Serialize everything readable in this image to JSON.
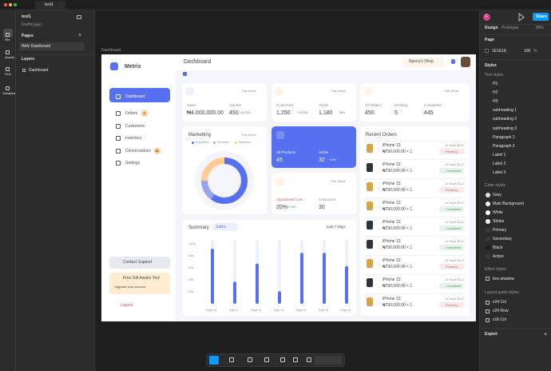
{
  "app": {
    "tab": "test1",
    "file_name": "test1",
    "location": "Drafts",
    "plan": "Free",
    "rail": [
      "File",
      "Assets",
      "Find",
      "Variables"
    ],
    "pages_heading": "Pages",
    "pages": [
      "Web Dashboard"
    ],
    "layers_heading": "Layers",
    "layers": [
      "Dashboard"
    ],
    "avatar_initial": "F",
    "share": "Share",
    "tabs": [
      "Design",
      "Prototype"
    ],
    "zoom": "89%",
    "page_heading": "Page",
    "page_color": "1E1E1E",
    "page_opacity": "100",
    "percent": "%",
    "styles_heading": "Styles",
    "text_styles_heading": "Text styles",
    "text_styles": [
      "H1",
      "H2",
      "H3",
      "subheading 1",
      "subheading 2",
      "subheading 3",
      "Paragraph 1",
      "Paragraph 2",
      "Label 1",
      "Label 2",
      "Label 3"
    ],
    "color_styles_heading": "Color styles",
    "color_styles": [
      {
        "name": "Grey",
        "color": "#e1e2e9"
      },
      {
        "name": "Main Background",
        "color": "#f4f5fa"
      },
      {
        "name": "White",
        "color": "#ffffff"
      },
      {
        "name": "Stroke",
        "color": "#f1f3f9"
      },
      {
        "name": "Primary",
        "color": "#3a3a3a"
      },
      {
        "name": "Secondary",
        "color": "#3a3a3a"
      },
      {
        "name": "Black",
        "color": "#1c1d22"
      },
      {
        "name": "Action",
        "color": "#3a3a3a"
      }
    ],
    "effect_styles_heading": "Effect styles",
    "effect_styles": [
      "box-shadow"
    ],
    "layout_guide_heading": "Layout guide styles",
    "layout_guides": [
      "x24 Col",
      "x24 Row",
      "x16 Col"
    ],
    "export": "Export",
    "frame_label": "Dashboard"
  },
  "dashboard": {
    "brand": "Metrix",
    "nav": [
      {
        "label": "Dashboard"
      },
      {
        "label": "Orders",
        "badge": 3
      },
      {
        "label": "Customers"
      },
      {
        "label": "Inventory"
      },
      {
        "label": "Conversations",
        "badge": 16
      },
      {
        "label": "Settings"
      }
    ],
    "support": "Contact Support",
    "gift_title": "Free Gift Awaits You!",
    "gift_link": "Upgrade your account",
    "logout": "Logout",
    "header": "Dashboard",
    "shop": "Nanny's Shop",
    "stats": [
      {
        "period": "This Week",
        "items": [
          {
            "label": "Sales",
            "value": "₦4,000,000.00"
          },
          {
            "label": "Volume",
            "value": "450",
            "change": "+20.00%"
          }
        ]
      },
      {
        "period": "This Week",
        "items": [
          {
            "label": "Customers",
            "value": "1,250",
            "change": "+15.80%"
          },
          {
            "label": "Active",
            "value": "1,180",
            "change": "85%"
          }
        ]
      },
      {
        "period": "This Week",
        "items": [
          {
            "label": "All Orders",
            "value": "450"
          },
          {
            "label": "Pending",
            "value": "5"
          },
          {
            "label": "Completed",
            "value": "445"
          }
        ]
      }
    ],
    "marketing": {
      "title": "Marketting",
      "period": "This Week",
      "names": [
        "Acquisition",
        "Purchase",
        "Retention"
      ],
      "colors": [
        "#5570f1",
        "#97a5eb",
        "#ffcc91"
      ],
      "values": [
        60,
        15,
        25
      ]
    },
    "products": {
      "items": [
        {
          "label": "All Products",
          "value": "45"
        },
        {
          "label": "Active",
          "value": "32",
          "change": "+24%"
        }
      ]
    },
    "abandoned": {
      "period": "This Week",
      "items": [
        {
          "label": "Abandoned Cart",
          "value": "20%",
          "change": "+0.00%"
        },
        {
          "label": "Customers",
          "value": "30"
        }
      ]
    },
    "summary": {
      "type": "bar",
      "title": "Summary",
      "filter": "Sales",
      "range": "Last 7 Days",
      "color": "#5570f1",
      "categories": [
        "Sept 10",
        "Sept 11",
        "Sept 12",
        "Sept 13",
        "Sept 14",
        "Sept 15",
        "Sept 16"
      ],
      "values": [
        92000,
        37000,
        67000,
        21000,
        85000,
        85000,
        63000
      ],
      "ylim": [
        0,
        100000
      ],
      "yticks": [
        {
          "value": 20000,
          "label": "20k"
        },
        {
          "value": 40000,
          "label": "40k"
        },
        {
          "value": 60000,
          "label": "60k"
        },
        {
          "value": 80000,
          "label": "80k"
        },
        {
          "value": 100000,
          "label": "100k"
        }
      ]
    },
    "orders_title": "Recent Orders",
    "orders": [
      {
        "product": "iPhone 13",
        "price": "₦730,000.00 × 1",
        "date": "12 Sept 2022",
        "status": "Pending",
        "status_color": "#cc5f5f"
      },
      {
        "product": "iPhone 13",
        "price": "₦730,000.00 × 1",
        "date": "12 Sept 2022",
        "status": "Completed",
        "status_color": "#519c66"
      },
      {
        "product": "iPhone 13",
        "price": "₦730,000.00 × 1",
        "date": "12 Sept 2022",
        "status": "Pending",
        "status_color": "#cc5f5f"
      },
      {
        "product": "iPhone 13",
        "price": "₦730,000.00 × 1",
        "date": "12 Sept 2022",
        "status": "Completed",
        "status_color": "#519c66"
      },
      {
        "product": "iPhone 13",
        "price": "₦730,000.00 × 1",
        "date": "12 Sept 2022",
        "status": "Completed",
        "status_color": "#519c66"
      },
      {
        "product": "iPhone 13",
        "price": "₦730,000.00 × 1",
        "date": "12 Sept 2022",
        "status": "Completed",
        "status_color": "#519c66"
      },
      {
        "product": "iPhone 13",
        "price": "₦730,000.00 × 1",
        "date": "12 Sept 2022",
        "status": "Pending",
        "status_color": "#cc5f5f"
      },
      {
        "product": "iPhone 13",
        "price": "₦730,000.00 × 1",
        "date": "12 Sept 2022",
        "status": "Completed",
        "status_color": "#519c66"
      },
      {
        "product": "iPhone 13",
        "price": "₦730,000.00 × 1",
        "date": "12 Sept 2022",
        "status": "Pending",
        "status_color": "#cc5f5f"
      }
    ]
  }
}
